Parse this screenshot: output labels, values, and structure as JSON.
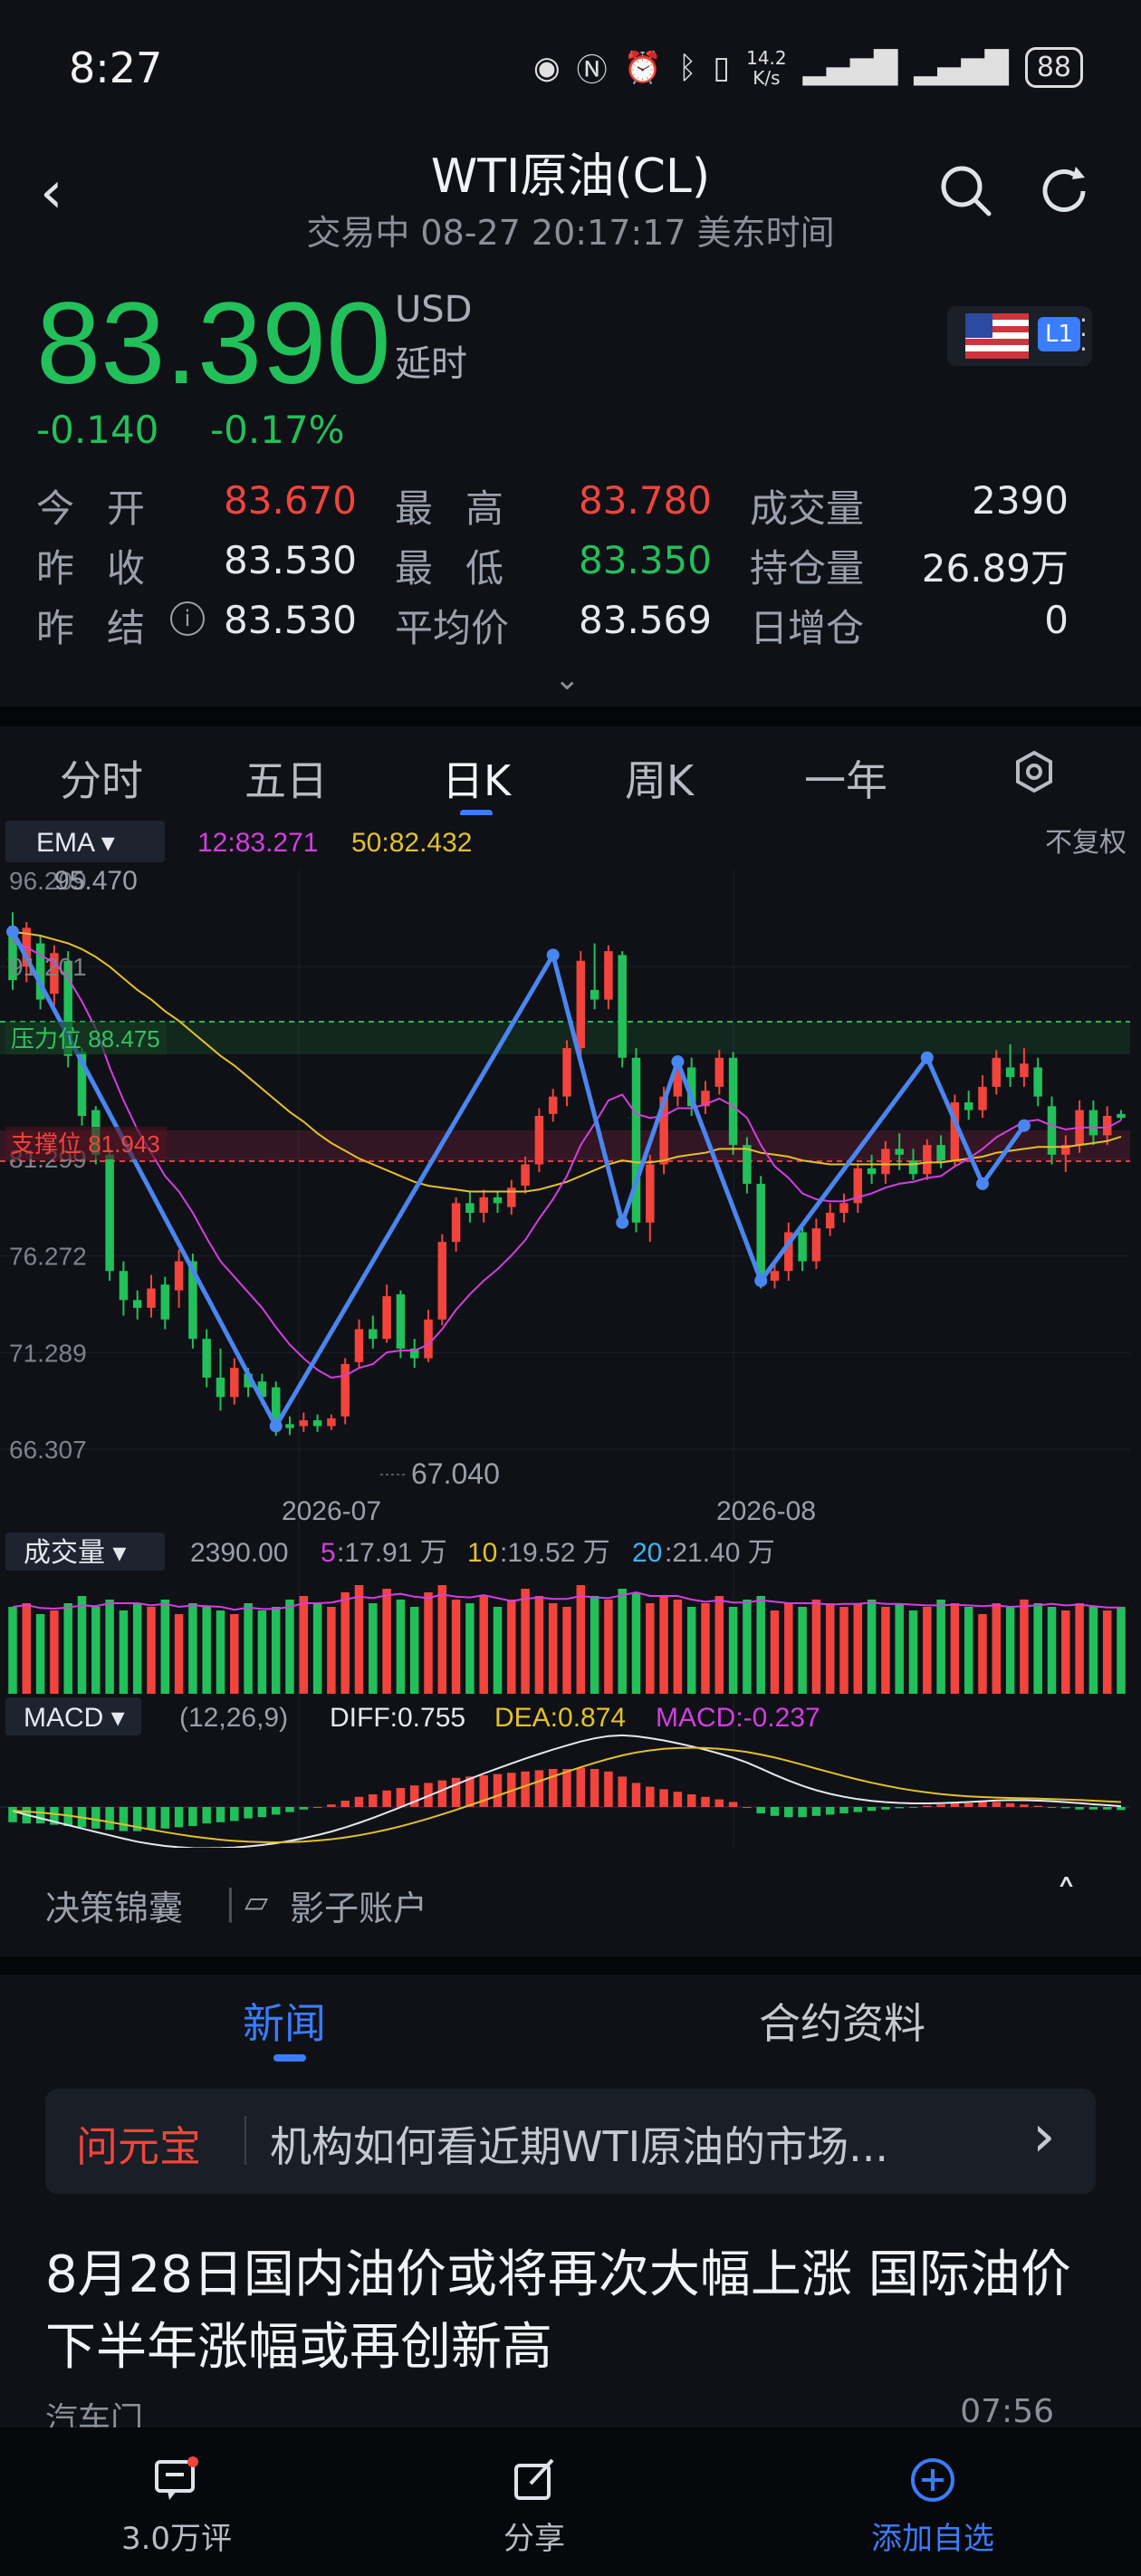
{
  "status_bar": {
    "time": "8:27",
    "net_speed_top": "14.2",
    "net_speed_bottom": "K/s",
    "battery": "88"
  },
  "header": {
    "title": "WTI原油(CL)",
    "subtitle": "交易中 08-27 20:17:17 美东时间"
  },
  "quote": {
    "price": "83.390",
    "currency": "USD",
    "delay": "延时",
    "change": "-0.140",
    "change_pct": "-0.17%",
    "market_badge": "L1"
  },
  "stats": [
    [
      {
        "label": "今开",
        "value": "83.670",
        "color": "red"
      },
      {
        "label": "最高",
        "value": "83.780",
        "color": "red"
      },
      {
        "label": "成交量",
        "value": "2390",
        "color": "white"
      }
    ],
    [
      {
        "label": "昨收",
        "value": "83.530",
        "color": "white"
      },
      {
        "label": "最低",
        "value": "83.350",
        "color": "green"
      },
      {
        "label": "持仓量",
        "value": "26.89万",
        "color": "white"
      }
    ],
    [
      {
        "label": "昨结",
        "value": "83.530",
        "color": "white"
      },
      {
        "label": "平均价",
        "value": "83.569",
        "color": "white"
      },
      {
        "label": "日增仓",
        "value": "0",
        "color": "white"
      }
    ]
  ],
  "tabs": {
    "items": [
      "分时",
      "五日",
      "日K",
      "周K",
      "一年"
    ],
    "active": "日K"
  },
  "colors": {
    "up": "#f2443c",
    "down": "#22c05a",
    "accent": "#3a7dff",
    "ema12": "#d43ee0",
    "ema50": "#e3c12a"
  },
  "chart_labels": {
    "ema_button": "EMA ▾",
    "ema12": "12:83.271",
    "ema50": "50:82.432",
    "adjust": "不复权",
    "top_left": "96.209",
    "top_left_over": "95.470",
    "resist": "压力位 88.475",
    "support": "支撑位 81.943",
    "low_mark": "67.040",
    "vol_button": "成交量 ▾",
    "vol_value": "2390.00",
    "ma5_key": "5",
    "ma5": ":17.91 万",
    "ma10_key": "10",
    "ma10": ":19.52 万",
    "ma20_key": "20",
    "ma20": ":21.40 万",
    "macd_button": "MACD ▾",
    "macd_params": "(12,26,9)",
    "diff": "DIFF:0.755",
    "dea": "DEA:0.874",
    "macd": "MACD:-0.237"
  },
  "chart_data": {
    "type": "candlestick",
    "y_ticks": [
      "91.201",
      "81.299",
      "76.272",
      "71.289",
      "66.307"
    ],
    "x_ticks": [
      "2026-07",
      "2026-08"
    ],
    "ylim": [
      66.307,
      96.209
    ],
    "candles": [
      [
        93.0,
        90.5,
        90.0,
        94.0
      ],
      [
        91.2,
        93.2,
        90.4,
        93.5
      ],
      [
        92.4,
        89.5,
        89.0,
        92.8
      ],
      [
        89.8,
        91.9,
        89.2,
        92.3
      ],
      [
        91.5,
        86.6,
        86.0,
        92.0
      ],
      [
        86.8,
        83.5,
        83.0,
        87.0
      ],
      [
        83.8,
        81.5,
        81.0,
        84.0
      ],
      [
        81.5,
        75.5,
        75.0,
        81.8
      ],
      [
        75.5,
        74.0,
        73.2,
        76.0
      ],
      [
        74.0,
        73.6,
        73.0,
        74.5
      ],
      [
        73.6,
        74.6,
        73.1,
        75.3
      ],
      [
        74.8,
        73.0,
        72.5,
        75.2
      ],
      [
        74.5,
        76.0,
        73.6,
        76.6
      ],
      [
        76.0,
        72.0,
        71.5,
        76.4
      ],
      [
        72.0,
        70.0,
        69.5,
        72.5
      ],
      [
        70.0,
        69.0,
        68.3,
        71.5
      ],
      [
        69.0,
        70.5,
        68.6,
        71.0
      ],
      [
        70.2,
        69.5,
        69.0,
        70.5
      ],
      [
        69.8,
        69.0,
        68.6,
        70.2
      ],
      [
        69.5,
        67.5,
        67.0,
        69.8
      ],
      [
        67.6,
        67.4,
        67.04,
        68.0
      ],
      [
        67.5,
        67.8,
        67.2,
        68.2
      ],
      [
        67.8,
        67.5,
        67.2,
        68.1
      ],
      [
        67.5,
        67.9,
        67.3,
        68.1
      ],
      [
        68.0,
        70.7,
        67.6,
        71.0
      ],
      [
        70.8,
        72.5,
        70.5,
        73.0
      ],
      [
        72.5,
        72.0,
        71.5,
        73.2
      ],
      [
        72.0,
        74.2,
        71.8,
        74.8
      ],
      [
        74.3,
        71.5,
        71.0,
        74.5
      ],
      [
        71.5,
        71.0,
        70.5,
        72.0
      ],
      [
        71.0,
        73.0,
        70.8,
        73.5
      ],
      [
        73.0,
        77.0,
        72.7,
        77.4
      ],
      [
        77.0,
        79.0,
        76.5,
        79.3
      ],
      [
        79.0,
        78.5,
        78.0,
        79.6
      ],
      [
        78.5,
        79.3,
        78.0,
        79.7
      ],
      [
        79.3,
        79.0,
        78.5,
        79.6
      ],
      [
        78.8,
        79.8,
        78.4,
        80.2
      ],
      [
        79.9,
        81.0,
        79.5,
        81.4
      ],
      [
        81.0,
        83.5,
        80.6,
        83.9
      ],
      [
        83.6,
        84.5,
        83.2,
        84.9
      ],
      [
        84.5,
        87.0,
        84.0,
        87.4
      ],
      [
        87.0,
        91.5,
        86.5,
        92.0
      ],
      [
        90.0,
        89.5,
        89.0,
        92.4
      ],
      [
        89.5,
        92.0,
        89.0,
        92.3
      ],
      [
        91.8,
        86.5,
        86.0,
        92.0
      ],
      [
        86.5,
        78.0,
        77.5,
        87.0
      ],
      [
        78.0,
        81.0,
        77.0,
        81.5
      ],
      [
        81.0,
        84.5,
        80.5,
        85.0
      ],
      [
        84.5,
        86.2,
        84.0,
        86.6
      ],
      [
        86.0,
        84.0,
        83.5,
        86.5
      ],
      [
        84.0,
        84.8,
        83.6,
        85.3
      ],
      [
        85.0,
        86.5,
        84.6,
        86.9
      ],
      [
        86.5,
        82.0,
        81.5,
        86.8
      ],
      [
        82.0,
        80.0,
        79.5,
        82.4
      ],
      [
        80.0,
        75.0,
        74.6,
        80.4
      ],
      [
        75.0,
        75.5,
        74.6,
        76.0
      ],
      [
        75.5,
        77.5,
        75.0,
        78.0
      ],
      [
        77.5,
        76.0,
        75.5,
        78.0
      ],
      [
        76.0,
        77.7,
        75.6,
        78.2
      ],
      [
        77.7,
        78.5,
        77.3,
        79.0
      ],
      [
        78.5,
        79.0,
        78.0,
        79.5
      ],
      [
        79.0,
        80.8,
        78.5,
        81.0
      ],
      [
        80.8,
        80.5,
        80.0,
        81.5
      ],
      [
        80.5,
        81.8,
        80.0,
        82.2
      ],
      [
        81.8,
        81.5,
        80.7,
        82.6
      ],
      [
        81.2,
        80.5,
        80.2,
        81.8
      ],
      [
        80.5,
        82.0,
        80.2,
        82.3
      ],
      [
        82.0,
        81.2,
        80.8,
        82.5
      ],
      [
        81.2,
        84.2,
        80.9,
        84.6
      ],
      [
        84.2,
        83.8,
        83.3,
        84.8
      ],
      [
        83.8,
        85.0,
        83.4,
        85.6
      ],
      [
        85.0,
        86.5,
        84.6,
        86.9
      ],
      [
        86.0,
        85.5,
        85.0,
        87.2
      ],
      [
        85.5,
        86.2,
        85.0,
        87.0
      ],
      [
        86.0,
        84.5,
        84.0,
        86.5
      ],
      [
        84.0,
        81.5,
        81.0,
        84.5
      ],
      [
        81.5,
        82.0,
        80.6,
        82.5
      ],
      [
        82.0,
        83.8,
        81.6,
        84.3
      ],
      [
        83.8,
        82.5,
        82.0,
        84.3
      ],
      [
        82.5,
        83.5,
        82.0,
        84.0
      ],
      [
        83.6,
        83.4,
        83.3,
        83.8
      ]
    ],
    "ema12": [
      92.5,
      92.2,
      91.8,
      91.4,
      90.6,
      89.4,
      88.0,
      86.0,
      84.3,
      82.8,
      81.6,
      80.4,
      79.6,
      78.5,
      77.2,
      76.0,
      75.2,
      74.4,
      73.6,
      72.6,
      71.7,
      71.0,
      70.4,
      70.0,
      70.1,
      70.5,
      70.7,
      71.3,
      71.4,
      71.4,
      71.7,
      72.5,
      73.5,
      74.3,
      75.0,
      75.6,
      76.3,
      77.1,
      78.2,
      79.2,
      80.4,
      82.0,
      83.1,
      84.3,
      84.6,
      83.6,
      83.4,
      83.5,
      83.9,
      83.9,
      84.1,
      84.4,
      84.0,
      83.4,
      82.0,
      80.9,
      80.3,
      79.5,
      79.2,
      79.1,
      79.1,
      79.3,
      79.5,
      79.8,
      80.0,
      80.1,
      80.3,
      80.4,
      80.9,
      81.3,
      81.8,
      82.4,
      82.8,
      83.2,
      83.3,
      83.0,
      82.8,
      82.9,
      82.9,
      82.9,
      83.27
    ],
    "ema50": [
      93.0,
      92.9,
      92.8,
      92.6,
      92.4,
      92.1,
      91.7,
      91.2,
      90.6,
      90.0,
      89.5,
      88.9,
      88.4,
      87.8,
      87.2,
      86.6,
      86.1,
      85.5,
      84.9,
      84.3,
      83.7,
      83.2,
      82.6,
      82.1,
      81.7,
      81.3,
      81.0,
      80.7,
      80.4,
      80.1,
      79.9,
      79.8,
      79.7,
      79.6,
      79.6,
      79.6,
      79.6,
      79.6,
      79.7,
      79.9,
      80.1,
      80.4,
      80.7,
      81.0,
      81.2,
      81.1,
      81.1,
      81.2,
      81.4,
      81.5,
      81.6,
      81.8,
      81.8,
      81.8,
      81.6,
      81.5,
      81.4,
      81.2,
      81.1,
      81.0,
      81.0,
      81.0,
      81.0,
      81.0,
      81.0,
      81.0,
      81.1,
      81.1,
      81.2,
      81.3,
      81.4,
      81.6,
      81.7,
      81.8,
      81.9,
      81.9,
      81.9,
      82.0,
      82.1,
      82.2,
      82.43
    ],
    "zigzag": [
      [
        0,
        93.0
      ],
      [
        19,
        67.5
      ],
      [
        39,
        91.8
      ],
      [
        44,
        78.0
      ],
      [
        48,
        86.3
      ],
      [
        54,
        75.0
      ],
      [
        66,
        86.5
      ],
      [
        70,
        80.0
      ],
      [
        73,
        83.0
      ]
    ],
    "volumes": [
      24,
      25,
      22,
      23,
      25,
      27,
      24,
      26,
      23,
      25,
      24,
      26,
      22,
      25,
      24,
      23,
      22,
      25,
      23,
      24,
      26,
      27,
      25,
      24,
      28,
      30,
      25,
      29,
      26,
      24,
      28,
      30,
      26,
      25,
      27,
      24,
      26,
      29,
      27,
      25,
      24,
      30,
      27,
      26,
      29,
      28,
      25,
      27,
      26,
      24,
      25,
      27,
      24,
      26,
      27,
      23,
      25,
      24,
      26,
      25,
      24,
      25,
      26,
      24,
      25,
      23,
      24,
      26,
      25,
      24,
      22,
      25,
      24,
      26,
      25,
      24,
      23,
      25,
      24,
      23,
      24
    ],
    "macd_hist": [
      -1.2,
      -1.3,
      -1.3,
      -1.4,
      -1.5,
      -1.6,
      -1.7,
      -1.8,
      -1.9,
      -1.9,
      -1.8,
      -1.7,
      -1.6,
      -1.5,
      -1.3,
      -1.2,
      -1.1,
      -0.9,
      -0.8,
      -0.6,
      -0.4,
      -0.2,
      0.0,
      0.2,
      0.5,
      0.8,
      1.0,
      1.3,
      1.5,
      1.7,
      1.9,
      2.1,
      2.3,
      2.4,
      2.5,
      2.6,
      2.7,
      2.8,
      2.9,
      3.0,
      3.0,
      3.1,
      3.0,
      2.8,
      2.4,
      1.9,
      1.6,
      1.4,
      1.2,
      1.0,
      0.8,
      0.6,
      0.4,
      0.0,
      -0.5,
      -0.7,
      -0.8,
      -0.8,
      -0.7,
      -0.6,
      -0.5,
      -0.4,
      -0.3,
      -0.2,
      -0.1,
      0.0,
      0.1,
      0.2,
      0.3,
      0.3,
      0.4,
      0.4,
      0.3,
      0.2,
      0.1,
      0.0,
      -0.1,
      -0.2,
      -0.2,
      -0.2,
      -0.24
    ]
  },
  "toolbar2": {
    "left": "决策锦囊",
    "right": "影子账户"
  },
  "news_tabs": {
    "items": [
      "新闻",
      "合约资料"
    ],
    "active": "新闻"
  },
  "ask": {
    "badge": "问元宝",
    "text": "机构如何看近期WTI原油的市场..."
  },
  "headline": "8月28日国内油价或将再次大幅上涨 国际油价下半年涨幅或再创新高",
  "news_source": "汽车门",
  "news_time": "07:56",
  "bottom_bar": {
    "comments": "3.0万评",
    "share": "分享",
    "add": "添加自选"
  }
}
